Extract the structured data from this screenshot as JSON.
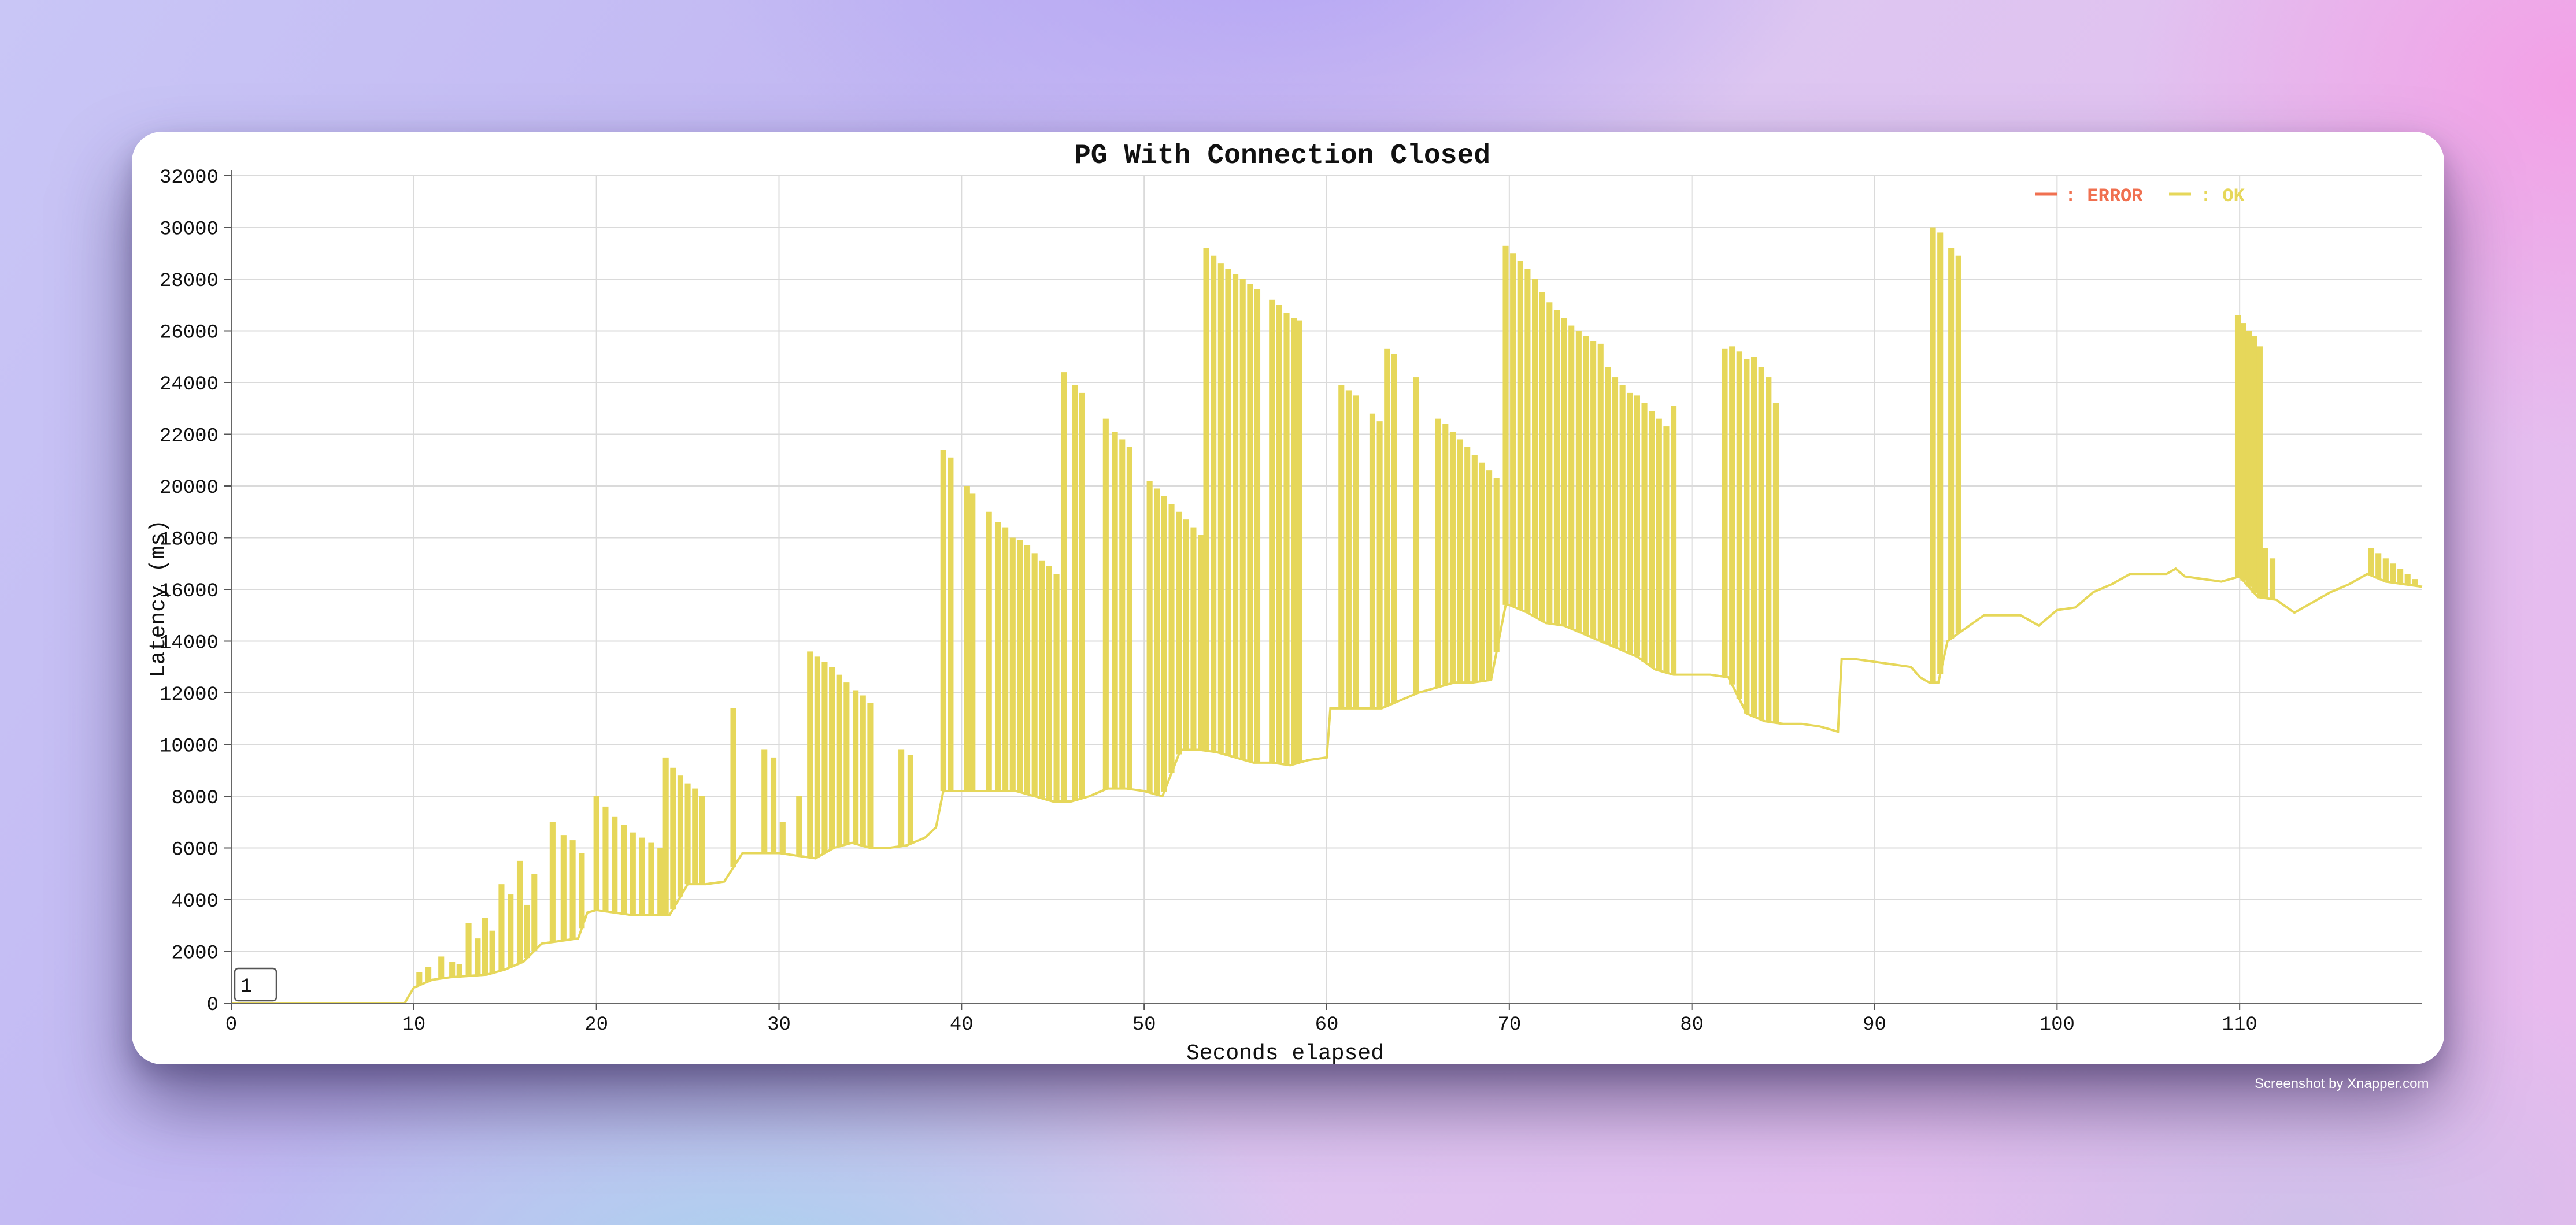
{
  "chart_data": {
    "type": "line",
    "title": "PG With Connection Closed",
    "xlabel": "Seconds elapsed",
    "ylabel": "Latency (ms)",
    "xlim": [
      0,
      120
    ],
    "ylim": [
      0,
      32000
    ],
    "x_ticks": [
      0,
      10,
      20,
      30,
      40,
      50,
      60,
      70,
      80,
      90,
      100,
      110
    ],
    "y_ticks": [
      0,
      2000,
      4000,
      6000,
      8000,
      10000,
      12000,
      14000,
      16000,
      18000,
      20000,
      22000,
      24000,
      26000,
      28000,
      30000,
      32000
    ],
    "grid": true,
    "legend_position": "top-right",
    "series": [
      {
        "name": "ERROR",
        "color": "#f07050",
        "points": []
      },
      {
        "name": "OK",
        "color": "#e6d75a",
        "baseline": [
          [
            0,
            0
          ],
          [
            9.5,
            0
          ],
          [
            10,
            600
          ],
          [
            11,
            900
          ],
          [
            12,
            1000
          ],
          [
            13,
            1050
          ],
          [
            14,
            1100
          ],
          [
            15,
            1300
          ],
          [
            16,
            1600
          ],
          [
            17,
            2300
          ],
          [
            18,
            2400
          ],
          [
            19,
            2500
          ],
          [
            19.5,
            3500
          ],
          [
            20,
            3600
          ],
          [
            21,
            3500
          ],
          [
            22,
            3400
          ],
          [
            23,
            3400
          ],
          [
            24,
            3400
          ],
          [
            25,
            4600
          ],
          [
            26,
            4600
          ],
          [
            27,
            4700
          ],
          [
            28,
            5800
          ],
          [
            29,
            5800
          ],
          [
            30,
            5800
          ],
          [
            31,
            5700
          ],
          [
            32,
            5600
          ],
          [
            33,
            6000
          ],
          [
            34,
            6200
          ],
          [
            35,
            6000
          ],
          [
            36,
            6000
          ],
          [
            37,
            6100
          ],
          [
            38,
            6400
          ],
          [
            38.6,
            6800
          ],
          [
            39,
            8200
          ],
          [
            40,
            8200
          ],
          [
            41,
            8200
          ],
          [
            42,
            8200
          ],
          [
            43,
            8200
          ],
          [
            44,
            8000
          ],
          [
            45,
            7800
          ],
          [
            46,
            7800
          ],
          [
            47,
            8000
          ],
          [
            48,
            8300
          ],
          [
            49,
            8300
          ],
          [
            50,
            8200
          ],
          [
            51,
            8000
          ],
          [
            52,
            9800
          ],
          [
            53,
            9800
          ],
          [
            54,
            9700
          ],
          [
            55,
            9500
          ],
          [
            56,
            9300
          ],
          [
            57,
            9300
          ],
          [
            58,
            9200
          ],
          [
            59,
            9400
          ],
          [
            60,
            9500
          ],
          [
            60.2,
            11400
          ],
          [
            61,
            11400
          ],
          [
            62,
            11400
          ],
          [
            63,
            11400
          ],
          [
            64,
            11700
          ],
          [
            65,
            12000
          ],
          [
            66,
            12200
          ],
          [
            67,
            12400
          ],
          [
            68,
            12400
          ],
          [
            69,
            12500
          ],
          [
            69.8,
            15400
          ],
          [
            70,
            15400
          ],
          [
            71,
            15100
          ],
          [
            72,
            14700
          ],
          [
            73,
            14600
          ],
          [
            74,
            14300
          ],
          [
            75,
            14000
          ],
          [
            76,
            13700
          ],
          [
            77,
            13400
          ],
          [
            78,
            12900
          ],
          [
            79,
            12700
          ],
          [
            80,
            12700
          ],
          [
            81,
            12700
          ],
          [
            82,
            12600
          ],
          [
            83,
            11200
          ],
          [
            84,
            10900
          ],
          [
            85,
            10800
          ],
          [
            86,
            10800
          ],
          [
            87,
            10700
          ],
          [
            88,
            10500
          ],
          [
            88.2,
            13300
          ],
          [
            89,
            13300
          ],
          [
            90,
            13200
          ],
          [
            91,
            13100
          ],
          [
            92,
            13000
          ],
          [
            92.5,
            12600
          ],
          [
            93,
            12400
          ],
          [
            93.5,
            12400
          ],
          [
            94,
            14000
          ],
          [
            95,
            14500
          ],
          [
            96,
            15000
          ],
          [
            97,
            15000
          ],
          [
            98,
            15000
          ],
          [
            99,
            14600
          ],
          [
            100,
            15200
          ],
          [
            101,
            15300
          ],
          [
            102,
            15900
          ],
          [
            103,
            16200
          ],
          [
            104,
            16600
          ],
          [
            105,
            16600
          ],
          [
            106,
            16600
          ],
          [
            106.5,
            16800
          ],
          [
            107,
            16500
          ],
          [
            108,
            16400
          ],
          [
            109,
            16300
          ],
          [
            110,
            16500
          ],
          [
            111,
            15700
          ],
          [
            112,
            15600
          ],
          [
            113,
            15100
          ],
          [
            114,
            15500
          ],
          [
            115,
            15900
          ],
          [
            116,
            16200
          ],
          [
            117,
            16600
          ],
          [
            118,
            16300
          ],
          [
            119,
            16200
          ],
          [
            120,
            16100
          ]
        ],
        "spikes": [
          [
            10.3,
            1200
          ],
          [
            10.8,
            1400
          ],
          [
            11.5,
            1800
          ],
          [
            12.1,
            1600
          ],
          [
            12.5,
            1500
          ],
          [
            13,
            3100
          ],
          [
            13.5,
            2500
          ],
          [
            13.9,
            3300
          ],
          [
            14.3,
            2800
          ],
          [
            14.8,
            4600
          ],
          [
            15.3,
            4200
          ],
          [
            15.8,
            5500
          ],
          [
            16.2,
            3800
          ],
          [
            16.6,
            5000
          ],
          [
            17.6,
            7000
          ],
          [
            18.2,
            6500
          ],
          [
            18.7,
            6300
          ],
          [
            19.2,
            5800
          ],
          [
            20,
            8000
          ],
          [
            20.5,
            7600
          ],
          [
            21,
            7200
          ],
          [
            21.5,
            6900
          ],
          [
            22,
            6600
          ],
          [
            22.5,
            6400
          ],
          [
            23,
            6200
          ],
          [
            23.5,
            6000
          ],
          [
            23.8,
            9500
          ],
          [
            24.2,
            9100
          ],
          [
            24.6,
            8800
          ],
          [
            25,
            8500
          ],
          [
            25.4,
            8300
          ],
          [
            25.8,
            8000
          ],
          [
            27.5,
            11400
          ],
          [
            29.2,
            9800
          ],
          [
            29.7,
            9500
          ],
          [
            30.2,
            7000
          ],
          [
            31.1,
            8000
          ],
          [
            31.7,
            13600
          ],
          [
            32.1,
            13400
          ],
          [
            32.5,
            13200
          ],
          [
            32.9,
            13000
          ],
          [
            33.3,
            12700
          ],
          [
            33.7,
            12400
          ],
          [
            34.2,
            12100
          ],
          [
            34.6,
            11900
          ],
          [
            35,
            11600
          ],
          [
            36.7,
            9800
          ],
          [
            37.2,
            9600
          ],
          [
            39,
            21400
          ],
          [
            39.4,
            21100
          ],
          [
            40.3,
            20000
          ],
          [
            40.6,
            19700
          ],
          [
            41.5,
            19000
          ],
          [
            42,
            18600
          ],
          [
            42.4,
            18400
          ],
          [
            42.8,
            18000
          ],
          [
            43.2,
            17900
          ],
          [
            43.6,
            17700
          ],
          [
            44,
            17400
          ],
          [
            44.4,
            17100
          ],
          [
            44.8,
            16900
          ],
          [
            45.2,
            16600
          ],
          [
            45.6,
            24400
          ],
          [
            46.2,
            23900
          ],
          [
            46.6,
            23600
          ],
          [
            47.9,
            22600
          ],
          [
            48.4,
            22100
          ],
          [
            48.8,
            21800
          ],
          [
            49.2,
            21500
          ],
          [
            50.3,
            20200
          ],
          [
            50.7,
            19900
          ],
          [
            51.1,
            19600
          ],
          [
            51.5,
            19300
          ],
          [
            51.9,
            19000
          ],
          [
            52.3,
            18700
          ],
          [
            52.7,
            18400
          ],
          [
            53.1,
            18100
          ],
          [
            53.4,
            29200
          ],
          [
            53.8,
            28900
          ],
          [
            54.2,
            28600
          ],
          [
            54.6,
            28400
          ],
          [
            55,
            28200
          ],
          [
            55.4,
            28000
          ],
          [
            55.8,
            27800
          ],
          [
            56.2,
            27600
          ],
          [
            57,
            27200
          ],
          [
            57.4,
            27000
          ],
          [
            57.8,
            26700
          ],
          [
            58.2,
            26500
          ],
          [
            58.5,
            26400
          ],
          [
            60.8,
            23900
          ],
          [
            61.2,
            23700
          ],
          [
            61.6,
            23500
          ],
          [
            62.5,
            22800
          ],
          [
            62.9,
            22500
          ],
          [
            63.3,
            25300
          ],
          [
            63.7,
            25100
          ],
          [
            64.9,
            24200
          ],
          [
            66.1,
            22600
          ],
          [
            66.5,
            22400
          ],
          [
            66.9,
            22100
          ],
          [
            67.3,
            21800
          ],
          [
            67.7,
            21500
          ],
          [
            68.1,
            21200
          ],
          [
            68.5,
            20900
          ],
          [
            68.9,
            20600
          ],
          [
            69.3,
            20300
          ],
          [
            69.8,
            29300
          ],
          [
            70.2,
            29000
          ],
          [
            70.6,
            28700
          ],
          [
            71,
            28400
          ],
          [
            71.4,
            28000
          ],
          [
            71.8,
            27500
          ],
          [
            72.2,
            27100
          ],
          [
            72.6,
            26800
          ],
          [
            73,
            26500
          ],
          [
            73.4,
            26200
          ],
          [
            73.8,
            26000
          ],
          [
            74.2,
            25800
          ],
          [
            74.6,
            25600
          ],
          [
            75,
            25500
          ],
          [
            75.4,
            24600
          ],
          [
            75.8,
            24200
          ],
          [
            76.2,
            23900
          ],
          [
            76.6,
            23600
          ],
          [
            77,
            23500
          ],
          [
            77.4,
            23200
          ],
          [
            77.8,
            22900
          ],
          [
            78.2,
            22600
          ],
          [
            78.6,
            22300
          ],
          [
            79,
            23100
          ],
          [
            81.8,
            25300
          ],
          [
            82.2,
            25400
          ],
          [
            82.6,
            25200
          ],
          [
            83,
            24900
          ],
          [
            83.4,
            25000
          ],
          [
            83.8,
            24600
          ],
          [
            84.2,
            24200
          ],
          [
            84.6,
            23200
          ],
          [
            93.2,
            30000
          ],
          [
            93.6,
            29800
          ],
          [
            94.2,
            29200
          ],
          [
            94.6,
            28900
          ],
          [
            109.9,
            26600
          ],
          [
            110.2,
            26300
          ],
          [
            110.5,
            26000
          ],
          [
            110.8,
            25800
          ],
          [
            111.1,
            25400
          ],
          [
            111.4,
            17600
          ],
          [
            111.8,
            17200
          ],
          [
            117.2,
            17600
          ],
          [
            117.6,
            17400
          ],
          [
            118,
            17200
          ],
          [
            118.4,
            17000
          ],
          [
            118.8,
            16800
          ],
          [
            119.2,
            16600
          ],
          [
            119.6,
            16400
          ]
        ]
      }
    ]
  },
  "controls": {
    "input_value": "1"
  },
  "watermark": "Screenshot by Xnapper.com"
}
